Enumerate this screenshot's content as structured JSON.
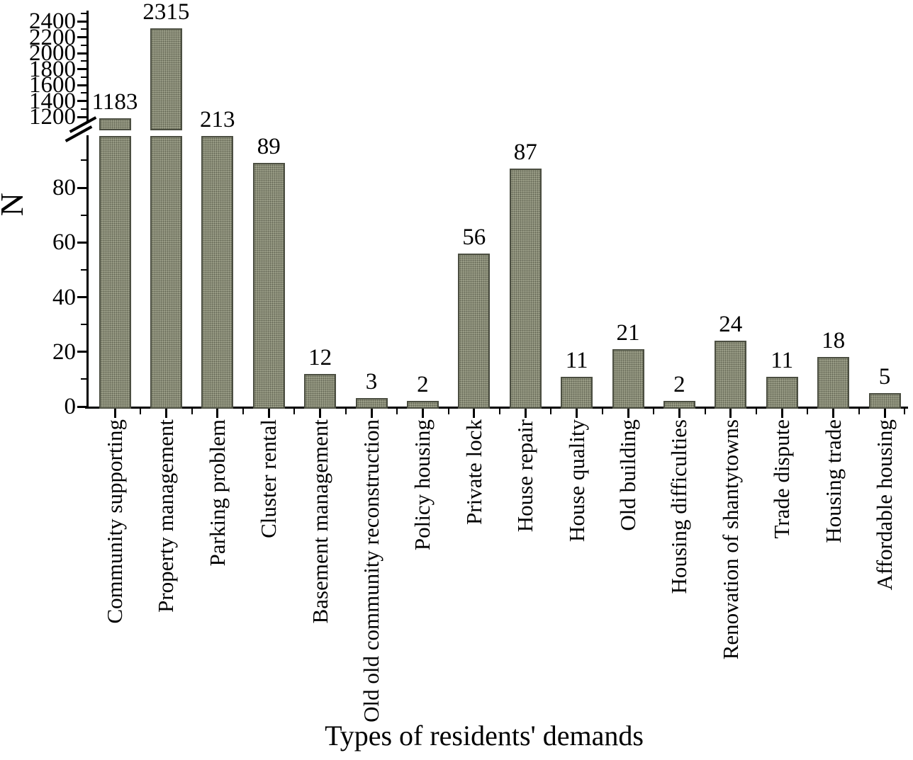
{
  "chart_data": {
    "type": "bar",
    "title": "",
    "xlabel": "Types of residents' demands",
    "ylabel": "N",
    "categories": [
      "Community supporting",
      "Property management",
      "Parking problem",
      "Cluster rental",
      "Basement management",
      "Old old community reconstruction",
      "Policy housing",
      "Private lock",
      "House repair",
      "House quality",
      "Old building",
      "Housing difficulties",
      "Renovation of shantytowns",
      "Trade dispute",
      "Housing trade",
      "Affordable housing"
    ],
    "values": [
      1183,
      2315,
      213,
      89,
      12,
      3,
      2,
      56,
      87,
      11,
      21,
      2,
      24,
      11,
      18,
      5
    ],
    "axis_break": {
      "present": true,
      "lower_ylim": [
        0,
        100
      ],
      "upper_ylim": [
        1150,
        2500
      ]
    },
    "y_ticks_lower": [
      0,
      20,
      40,
      60,
      80
    ],
    "y_minor_ticks_lower": [
      10,
      30,
      50,
      70,
      90
    ],
    "y_ticks_upper": [
      1200,
      1400,
      1600,
      1800,
      2000,
      2200,
      2400
    ],
    "y_minor_ticks_upper": [
      1300,
      1500,
      1700,
      1900,
      2100,
      2300,
      2500
    ],
    "grid": "off",
    "legend": "none",
    "bar_color": "#9b9e88",
    "bar_dot_color": "#32342a",
    "bar_border_color": "#4b4e41",
    "axis_color": "#000000"
  }
}
